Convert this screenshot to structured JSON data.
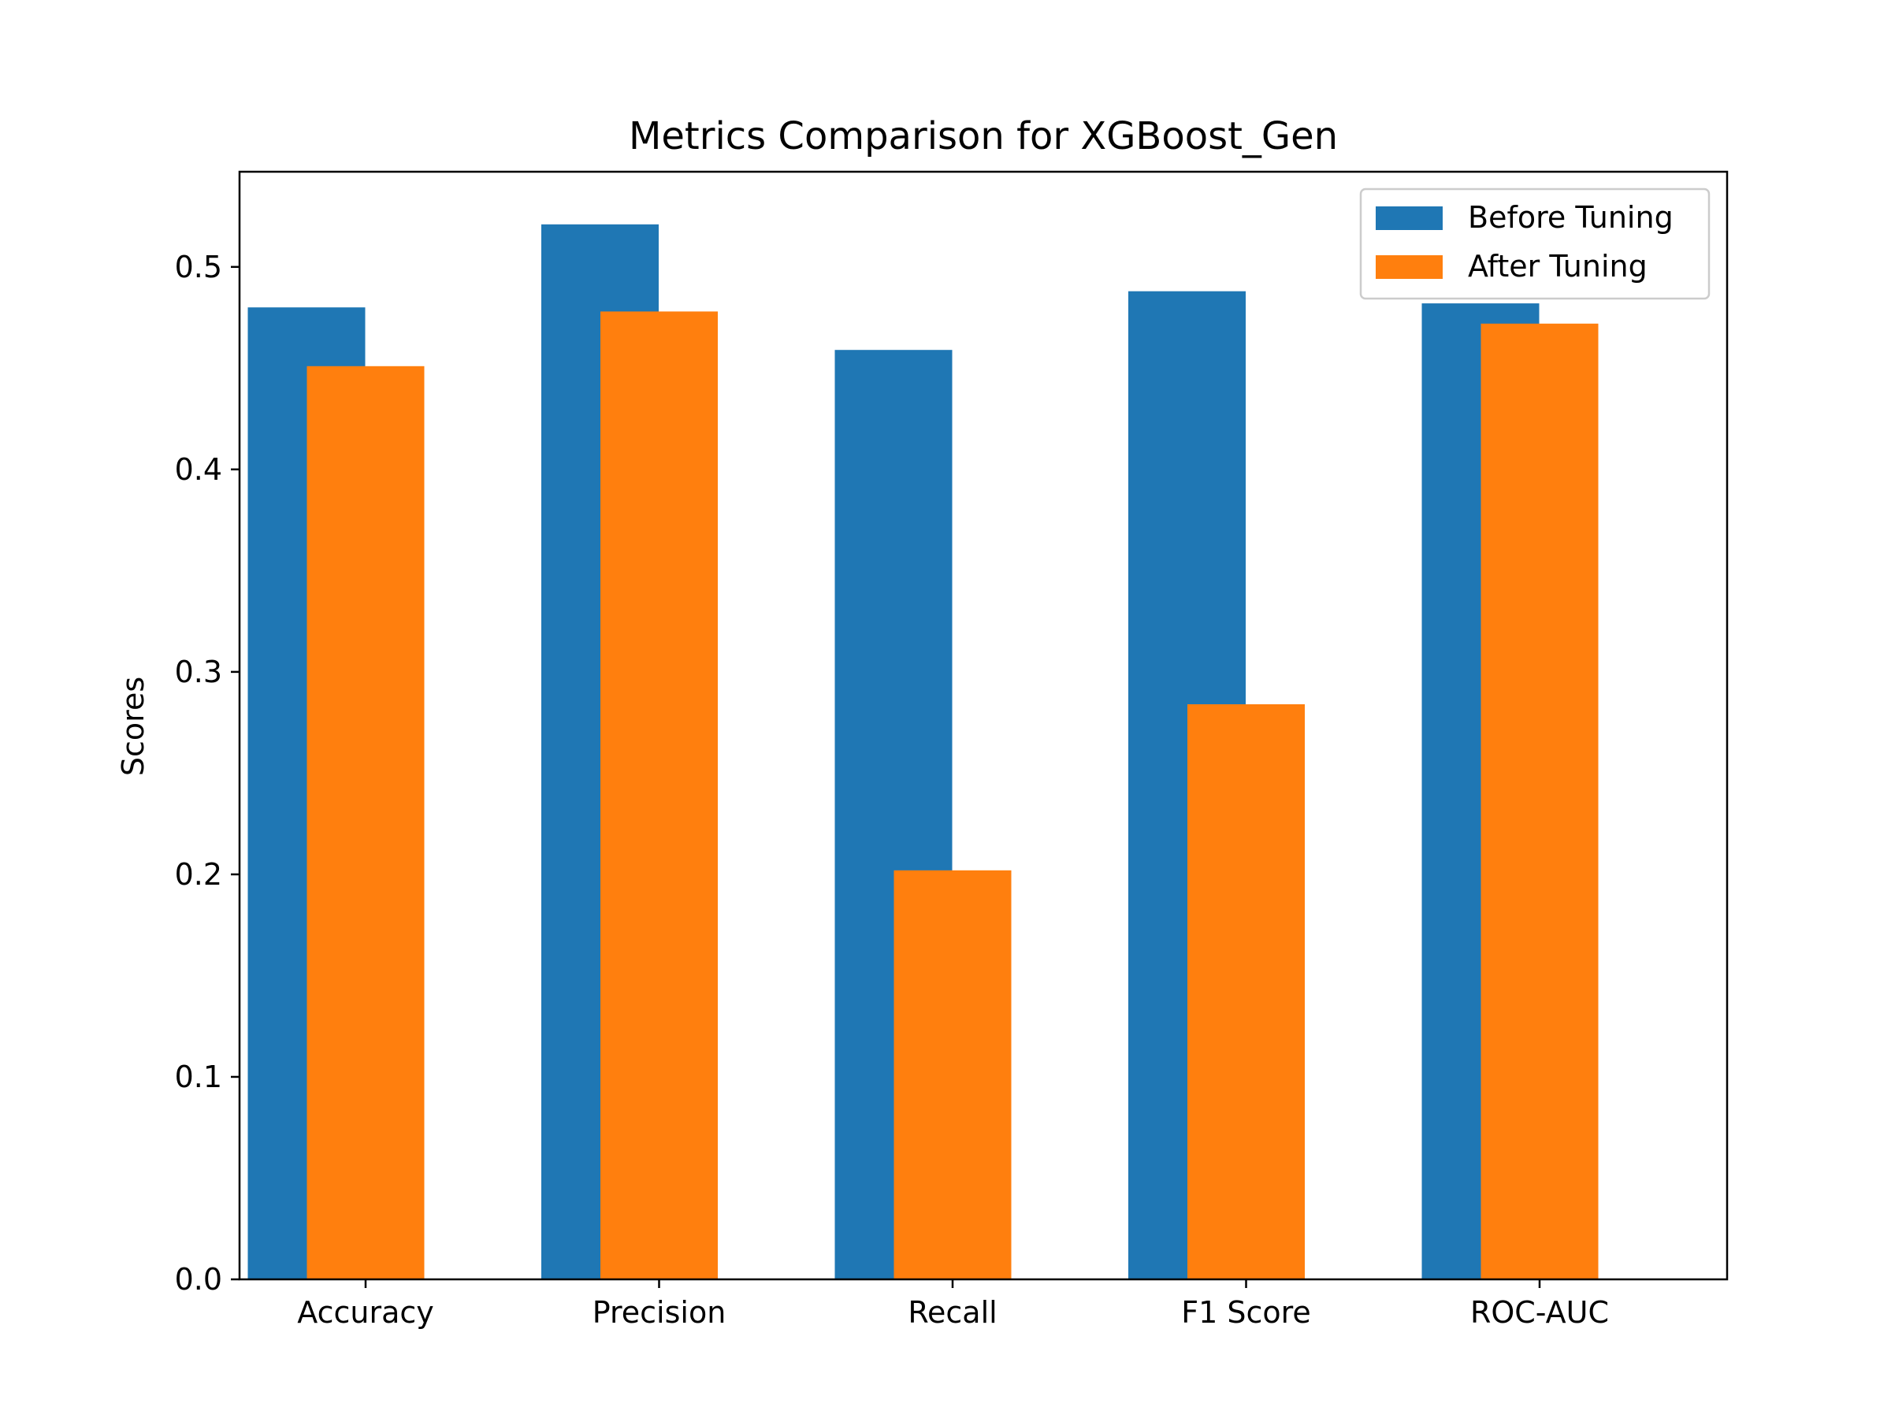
{
  "chart_data": {
    "type": "bar",
    "title": "Metrics Comparison for XGBoost_Gen",
    "xlabel": "",
    "ylabel": "Scores",
    "categories": [
      "Accuracy",
      "Precision",
      "Recall",
      "F1 Score",
      "ROC-AUC"
    ],
    "series": [
      {
        "name": "Before Tuning",
        "color": "#1f77b4",
        "values": [
          0.48,
          0.521,
          0.459,
          0.488,
          0.482
        ]
      },
      {
        "name": "After Tuning",
        "color": "#ff7f0e",
        "values": [
          0.451,
          0.478,
          0.202,
          0.284,
          0.472
        ]
      }
    ],
    "ylim": [
      0,
      0.547
    ],
    "yticks": [
      "0.0",
      "0.1",
      "0.2",
      "0.3",
      "0.4",
      "0.5"
    ],
    "grid": false,
    "legend_position": "top-right"
  }
}
